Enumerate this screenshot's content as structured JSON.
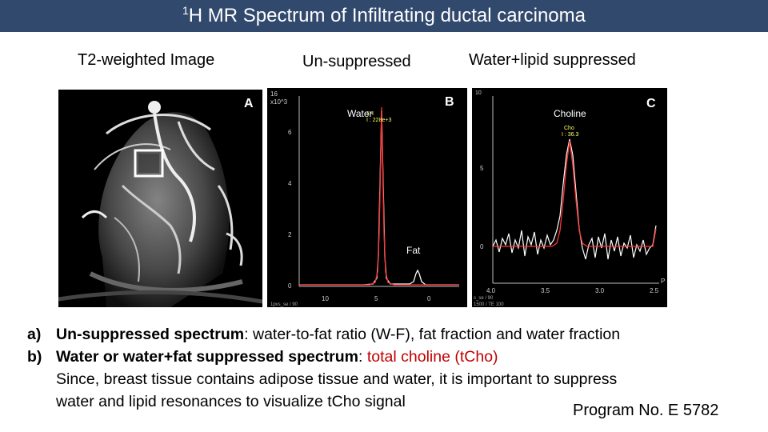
{
  "title": {
    "sup": "1",
    "text": "H MR Spectrum of Infiltrating ductal carcinoma"
  },
  "captions": {
    "t2": "T2-weighted Image",
    "unsup": "Un-suppressed",
    "suppressed": "Water+lipid suppressed"
  },
  "panel_a": {
    "letter": "A"
  },
  "panel_b": {
    "letter": "B",
    "scale_top": "16",
    "scale_exp": "x10^3",
    "peak_id": "1H",
    "peak_value": "I : 228e+3",
    "water_label": "Water",
    "fat_label": "Fat",
    "y_ticks": [
      "6",
      "4",
      "2",
      "0"
    ],
    "x_ticks": [
      "10",
      "5",
      "0"
    ],
    "footer": "1pvs_se / 90"
  },
  "panel_c": {
    "letter": "C",
    "scale_top": "10",
    "choline_label": "Choline",
    "peak_id": "Cho",
    "peak_value": "I : 36.3",
    "y_ticks": [
      "5",
      "0"
    ],
    "x_ticks": [
      "4.0",
      "3.5",
      "3.0",
      "2.5"
    ],
    "axis_unit": "P",
    "footer_1": "s_se / 90",
    "footer_2": "1500 / TE 100"
  },
  "bullets": {
    "a": {
      "label": "a)",
      "bold": "Un-suppressed spectrum",
      "rest": ": water-to-fat ratio (W-F), fat fraction and water fraction"
    },
    "b": {
      "label": "b)",
      "bold": "Water or water+fat suppressed spectrum",
      "sep": ": ",
      "red": "total choline (tCho)"
    },
    "note_1": "Since, breast tissue contains adipose tissue and water, it is important to suppress",
    "note_2": "water and lipid resonances to visualize tCho signal"
  },
  "program": "Program No. E 5782",
  "colors": {
    "title_bg": "#31496d",
    "fit_line": "#ff3333",
    "highlight": "#c00000"
  }
}
